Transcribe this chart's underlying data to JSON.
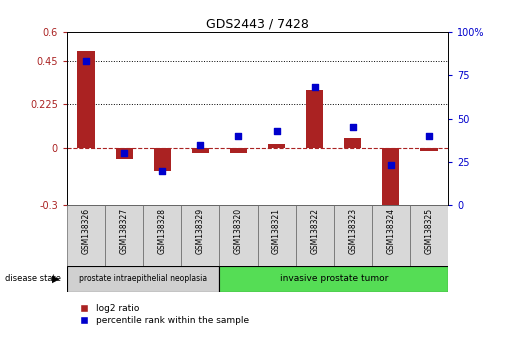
{
  "title": "GDS2443 / 7428",
  "samples": [
    "GSM138326",
    "GSM138327",
    "GSM138328",
    "GSM138329",
    "GSM138320",
    "GSM138321",
    "GSM138322",
    "GSM138323",
    "GSM138324",
    "GSM138325"
  ],
  "log2_ratio": [
    0.5,
    -0.06,
    -0.12,
    -0.03,
    -0.03,
    0.02,
    0.3,
    0.05,
    -0.35,
    -0.02
  ],
  "percentile_rank": [
    83,
    30,
    20,
    35,
    40,
    43,
    68,
    45,
    23,
    40
  ],
  "group1_label": "prostate intraepithelial neoplasia",
  "group2_label": "invasive prostate tumor",
  "group1_count": 4,
  "group2_count": 6,
  "disease_state_label": "disease state",
  "legend1": "log2 ratio",
  "legend2": "percentile rank within the sample",
  "ylim_left": [
    -0.3,
    0.6
  ],
  "ylim_right": [
    0,
    100
  ],
  "yticks_left": [
    -0.3,
    0.0,
    0.225,
    0.45,
    0.6
  ],
  "yticks_right": [
    0,
    25,
    50,
    75,
    100
  ],
  "hline_dotted": [
    0.225,
    0.45
  ],
  "bar_color": "#aa2222",
  "square_color": "#0000cc",
  "group1_bg": "#d0d0d0",
  "group2_bg": "#55dd55",
  "sample_box_bg": "#d8d8d8",
  "bar_width": 0.45
}
